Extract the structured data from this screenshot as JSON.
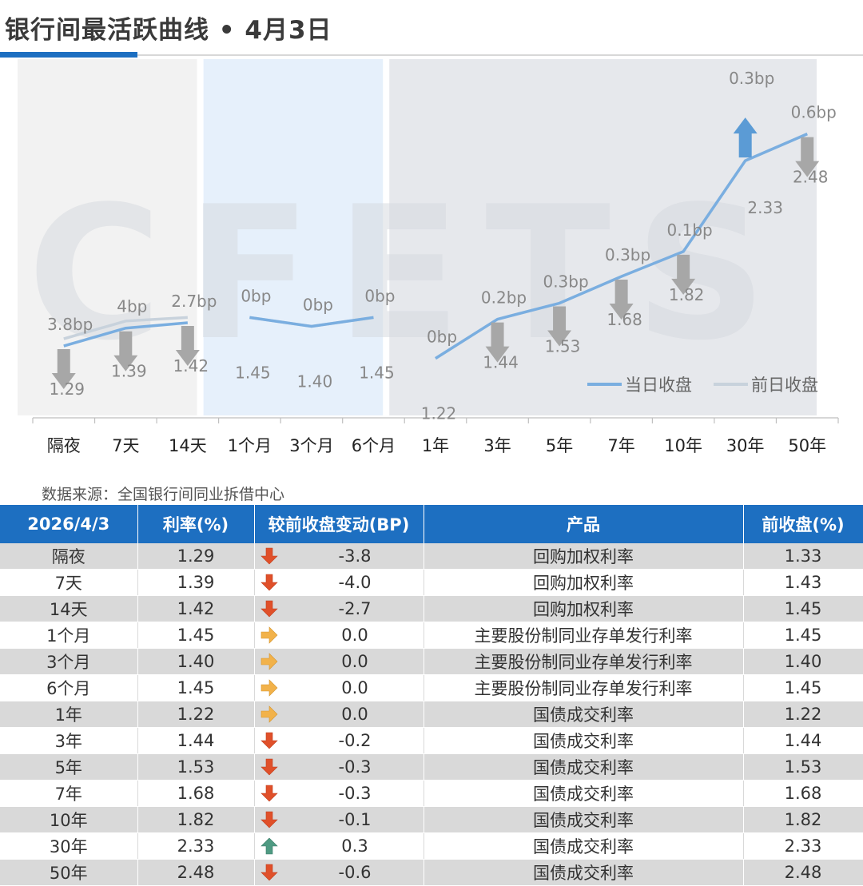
{
  "title": "银行间最活跃曲线 • 4月3日",
  "source": "数据来源：全国银行间同业拆借中心",
  "watermark": "CFETS",
  "colors": {
    "current": "#7aaee0",
    "previous": "#c8d2dc",
    "arrow_down_chart": "#a7a7a7",
    "arrow_up_chart": "#5b9bd5",
    "header_bg": "#1d6fc1",
    "arrow_down_table": "#e0502a",
    "arrow_flat_table": "#f2b24a",
    "arrow_up_table": "#4f9a82"
  },
  "chart_data": {
    "type": "line",
    "categories": [
      "隔夜",
      "7天",
      "14天",
      "1个月",
      "3个月",
      "6个月",
      "1年",
      "3年",
      "5年",
      "7年",
      "10年",
      "30年",
      "50年"
    ],
    "groups": [
      {
        "name": "short",
        "count": 3,
        "fill": "#f2f2f2"
      },
      {
        "name": "mid",
        "count": 3,
        "fill": "#e6f0fb"
      },
      {
        "name": "long",
        "count": 7,
        "fill": "#e6e8ec"
      }
    ],
    "series": [
      {
        "name": "当日收盘",
        "values": [
          1.29,
          1.39,
          1.42,
          1.45,
          1.4,
          1.45,
          1.22,
          1.44,
          1.53,
          1.68,
          1.82,
          2.33,
          2.48
        ]
      },
      {
        "name": "前日收盘",
        "values": [
          1.33,
          1.43,
          1.45,
          1.45,
          1.4,
          1.45,
          1.22,
          1.44,
          1.53,
          1.68,
          1.82,
          2.33,
          2.48
        ]
      }
    ],
    "value_labels": [
      "1.29",
      "1.39",
      "1.42",
      "1.45",
      "1.40",
      "1.45",
      "1.22",
      "1.44",
      "1.53",
      "1.68",
      "1.82",
      "2.33",
      "2.48"
    ],
    "change_labels": [
      "3.8bp",
      "4bp",
      "2.7bp",
      "0bp",
      "0bp",
      "0bp",
      "0bp",
      "0.2bp",
      "0.3bp",
      "0.3bp",
      "0.1bp",
      "0.3bp",
      "0.6bp"
    ],
    "directions": [
      "down",
      "down",
      "down",
      "flat",
      "flat",
      "flat",
      "flat",
      "down",
      "down",
      "down",
      "down",
      "up",
      "down"
    ],
    "segments": [
      [
        0,
        2
      ],
      [
        3,
        5
      ],
      [
        6,
        12
      ]
    ],
    "ylim": [
      0.9,
      2.9
    ],
    "legend": [
      "当日收盘",
      "前日收盘"
    ],
    "legend_position": "bottom-right"
  },
  "table": {
    "headers": [
      "2026/4/3",
      "利率(%)",
      "较前收盘变动(BP)",
      "产品",
      "前收盘(%)"
    ],
    "rows": [
      {
        "tenor": "隔夜",
        "rate": "1.29",
        "dir": "down",
        "change": "-3.8",
        "product": "回购加权利率",
        "prev": "1.33"
      },
      {
        "tenor": "7天",
        "rate": "1.39",
        "dir": "down",
        "change": "-4.0",
        "product": "回购加权利率",
        "prev": "1.43"
      },
      {
        "tenor": "14天",
        "rate": "1.42",
        "dir": "down",
        "change": "-2.7",
        "product": "回购加权利率",
        "prev": "1.45"
      },
      {
        "tenor": "1个月",
        "rate": "1.45",
        "dir": "flat",
        "change": "0.0",
        "product": "主要股份制同业存单发行利率",
        "prev": "1.45"
      },
      {
        "tenor": "3个月",
        "rate": "1.40",
        "dir": "flat",
        "change": "0.0",
        "product": "主要股份制同业存单发行利率",
        "prev": "1.40"
      },
      {
        "tenor": "6个月",
        "rate": "1.45",
        "dir": "flat",
        "change": "0.0",
        "product": "主要股份制同业存单发行利率",
        "prev": "1.45"
      },
      {
        "tenor": "1年",
        "rate": "1.22",
        "dir": "flat",
        "change": "0.0",
        "product": "国债成交利率",
        "prev": "1.22"
      },
      {
        "tenor": "3年",
        "rate": "1.44",
        "dir": "down",
        "change": "-0.2",
        "product": "国债成交利率",
        "prev": "1.44"
      },
      {
        "tenor": "5年",
        "rate": "1.53",
        "dir": "down",
        "change": "-0.3",
        "product": "国债成交利率",
        "prev": "1.53"
      },
      {
        "tenor": "7年",
        "rate": "1.68",
        "dir": "down",
        "change": "-0.3",
        "product": "国债成交利率",
        "prev": "1.68"
      },
      {
        "tenor": "10年",
        "rate": "1.82",
        "dir": "down",
        "change": "-0.1",
        "product": "国债成交利率",
        "prev": "1.82"
      },
      {
        "tenor": "30年",
        "rate": "2.33",
        "dir": "up",
        "change": "0.3",
        "product": "国债成交利率",
        "prev": "2.33"
      },
      {
        "tenor": "50年",
        "rate": "2.48",
        "dir": "down",
        "change": "-0.6",
        "product": "国债成交利率",
        "prev": "2.48"
      }
    ]
  }
}
